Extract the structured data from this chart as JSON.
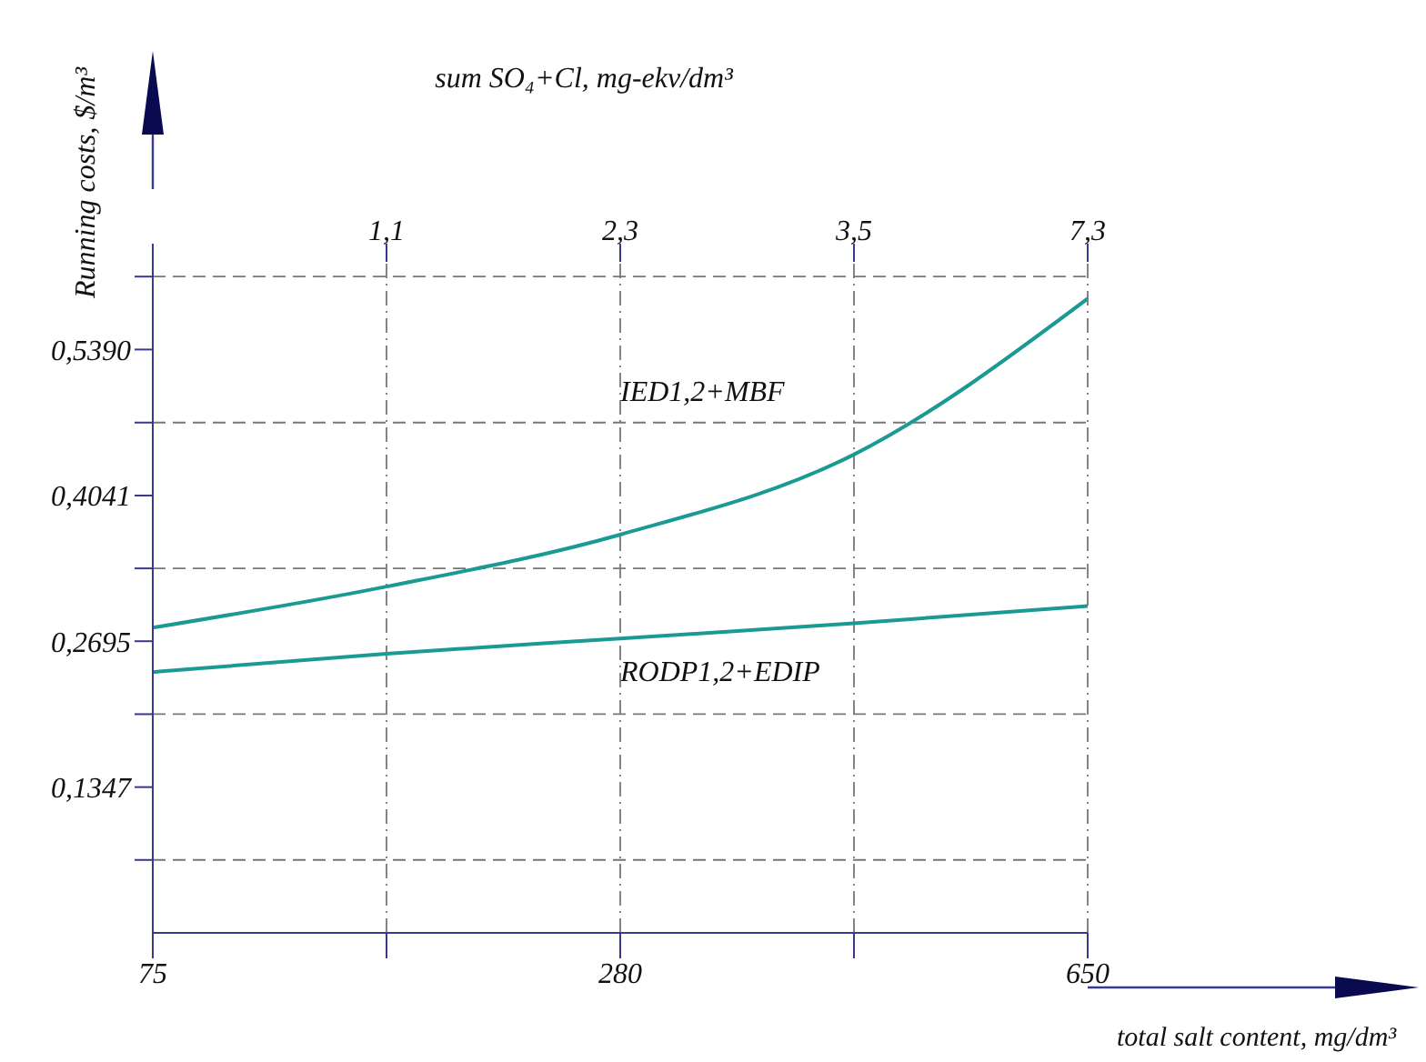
{
  "chart_data": {
    "type": "line",
    "xlabel": "total salt content, mg/dm³",
    "ylabel": "Running costs, $/m³",
    "x2label": "sum SO₄+Cl, mg-ekv/dm³",
    "categories": [
      "75",
      null,
      "280",
      null,
      "650"
    ],
    "annotations": [
      "1,1",
      "2,3",
      "3,5",
      "7,3"
    ],
    "series": [
      {
        "name": "IED1,2+MBF",
        "color": "#1a9a93",
        "values": [
          0.282,
          0.32,
          0.368,
          0.442,
          0.586
        ]
      },
      {
        "name": "RODP1,2+EDIP",
        "color": "#1a9a93",
        "values": [
          0.241,
          0.258,
          0.272,
          0.286,
          0.302
        ]
      }
    ],
    "ylim": [
      0,
      0.62
    ],
    "yticks": [
      {
        "value": 0.0674,
        "label": null
      },
      {
        "value": 0.1347,
        "label": "0,1347"
      },
      {
        "value": 0.2021,
        "label": null
      },
      {
        "value": 0.2695,
        "label": "0,2695"
      },
      {
        "value": 0.3368,
        "label": null
      },
      {
        "value": 0.4041,
        "label": "0,4041"
      },
      {
        "value": 0.4715,
        "label": null
      },
      {
        "value": 0.539,
        "label": "0,5390"
      },
      {
        "value": 0.6064,
        "label": null
      }
    ],
    "grid": true,
    "legend": false,
    "marker": "none",
    "line_style": "solid"
  }
}
